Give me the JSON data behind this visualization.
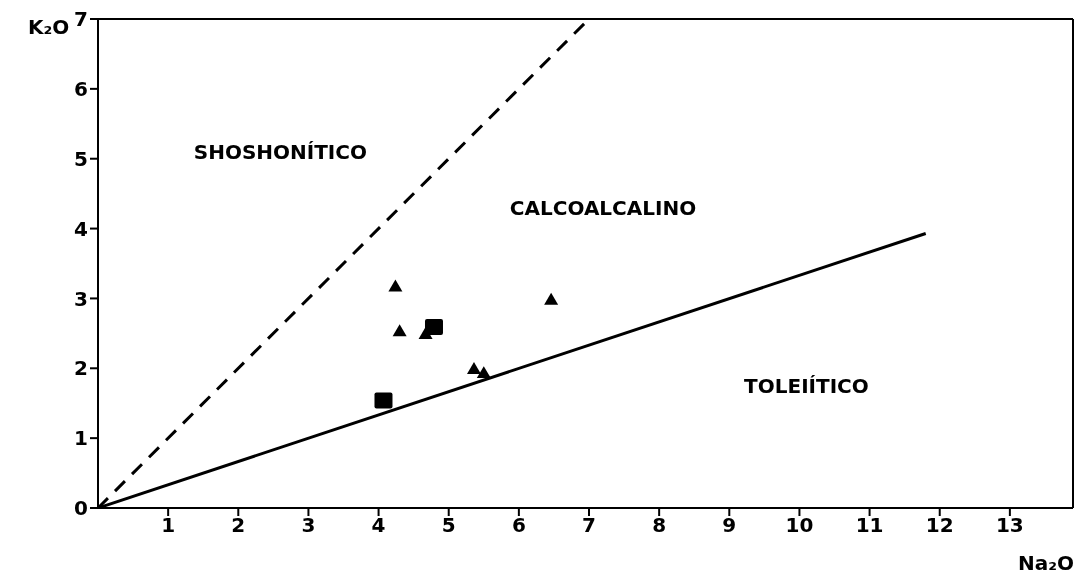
{
  "chart_data": {
    "type": "scatter",
    "xlabel": "Na₂O",
    "ylabel": "K₂O",
    "xlim": [
      0,
      13.9
    ],
    "xticks": [
      1,
      2,
      3,
      4,
      5,
      6,
      7,
      8,
      9,
      10,
      11,
      12,
      13
    ],
    "ylim": [
      0,
      7
    ],
    "yticks": [
      0,
      1,
      2,
      3,
      4,
      5,
      6,
      7
    ],
    "grid": false,
    "series": [
      {
        "type": "line",
        "color": "#000000",
        "line_style": "dashed",
        "marker": "none",
        "x": [
          0,
          7
        ],
        "values": [
          0,
          7
        ]
      },
      {
        "type": "line",
        "color": "#000000",
        "line_style": "solid",
        "marker": "none",
        "x": [
          0,
          11.8
        ],
        "values": [
          0,
          3.93
        ]
      },
      {
        "color": "#000000",
        "marker": "triangle",
        "x": [
          4.24,
          4.3,
          4.67,
          5.36,
          5.5,
          6.46
        ],
        "values": [
          3.17,
          2.53,
          2.49,
          1.99,
          1.93,
          2.98
        ]
      },
      {
        "color": "#000000",
        "marker": "square",
        "x": [
          4.07,
          4.79
        ],
        "values": [
          1.54,
          2.59
        ]
      }
    ],
    "annotations": [
      "SHOSHONÍTICO",
      "CALCOALCALINO",
      "TOLEIÍTICO"
    ]
  }
}
